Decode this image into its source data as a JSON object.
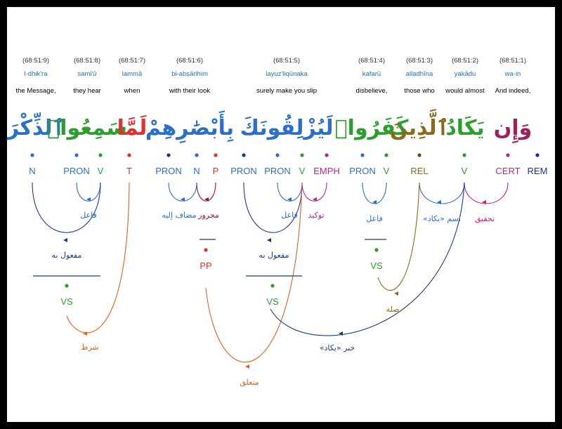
{
  "tokens": [
    {
      "loc": "(68:51:9)",
      "translit": "l-dhik'ra",
      "gloss": "the Message,",
      "arabic": "ٱلذِّكْرَ",
      "color": "#2a6fc9"
    },
    {
      "loc": "(68:51:8)",
      "translit": "sami'ū",
      "gloss": "they hear",
      "arabic": "سَمِعُوا۟",
      "color": "#2aa02a"
    },
    {
      "loc": "(68:51:7)",
      "translit": "lammā",
      "gloss": "when",
      "arabic": "لَمَّا",
      "color": "#e03030"
    },
    {
      "loc": "(68:51:6)",
      "translit": "bi-abṣārihim",
      "gloss": "with their look",
      "arabic": "بِأَبْصَٰرِهِمْ",
      "color": "#2a6fc9"
    },
    {
      "loc": "(68:51:5)",
      "translit": "layuz'liqūnaka",
      "gloss": "surely make you slip",
      "arabic": "لَيُزْلِقُونَكَ",
      "color": "#2a6fc9"
    },
    {
      "loc": "(68:51:4)",
      "translit": "kafarū",
      "gloss": "disbelieve,",
      "arabic": "كَفَرُوا۟",
      "color": "#2aa02a"
    },
    {
      "loc": "(68:51:3)",
      "translit": "alladhīna",
      "gloss": "those who",
      "arabic": "ٱلَّذِينَ",
      "color": "#8a6a1a"
    },
    {
      "loc": "(68:51:2)",
      "translit": "yakādu",
      "gloss": "would almost",
      "arabic": "يَكَادُ",
      "color": "#2aa02a"
    },
    {
      "loc": "(68:51:1)",
      "translit": "wa-in",
      "gloss": "And indeed,",
      "arabic": "وَإِن",
      "color": "#a0205a"
    }
  ],
  "tags": [
    {
      "text": "N",
      "color": "#2a6fc9"
    },
    {
      "text": "PRON",
      "color": "#2a6fc9"
    },
    {
      "text": "V",
      "color": "#2aa02a"
    },
    {
      "text": "T",
      "color": "#e03030"
    },
    {
      "text": "PRON",
      "color": "#2a6fc9"
    },
    {
      "text": "N",
      "color": "#2a6fc9"
    },
    {
      "text": "P",
      "color": "#e03030"
    },
    {
      "text": "PRON",
      "color": "#2a6fc9"
    },
    {
      "text": "PRON",
      "color": "#2a6fc9"
    },
    {
      "text": "V",
      "color": "#2aa02a"
    },
    {
      "text": "EMPH",
      "color": "#c02090"
    },
    {
      "text": "PRON",
      "color": "#2a6fc9"
    },
    {
      "text": "V",
      "color": "#2aa02a"
    },
    {
      "text": "REL",
      "color": "#8a6a1a"
    },
    {
      "text": "V",
      "color": "#2aa02a"
    },
    {
      "text": "CERT",
      "color": "#c02090"
    },
    {
      "text": "REM",
      "color": "#1a2ab0"
    }
  ],
  "phrase_nodes": [
    {
      "text": "VS",
      "color": "#2aa02a"
    },
    {
      "text": "PP",
      "color": "#e03030"
    },
    {
      "text": "VS",
      "color": "#2aa02a"
    },
    {
      "text": "VS",
      "color": "#2aa02a"
    }
  ],
  "relations": [
    {
      "label": "فاعل",
      "color": "#2a6fc9"
    },
    {
      "label": "مفعول به",
      "color": "#1a3a80"
    },
    {
      "label": "مجرور",
      "color": "#a01030"
    },
    {
      "label": "مضاف إليه",
      "color": "#2a6fc9"
    },
    {
      "label": "فاعل",
      "color": "#2a6fc9"
    },
    {
      "label": "توكيد",
      "color": "#c02090"
    },
    {
      "label": "مفعول به",
      "color": "#1a3a80"
    },
    {
      "label": "فاعل",
      "color": "#2a6fc9"
    },
    {
      "label": "اسم «يكاد»",
      "color": "#2a6fc9"
    },
    {
      "label": "تحقيق",
      "color": "#c02090"
    },
    {
      "label": "صلة",
      "color": "#8a6a1a"
    },
    {
      "label": "شرط",
      "color": "#e06020"
    },
    {
      "label": "متعلق",
      "color": "#e06020"
    },
    {
      "label": "خبر «يكاد»",
      "color": "#1a3a80"
    }
  ]
}
